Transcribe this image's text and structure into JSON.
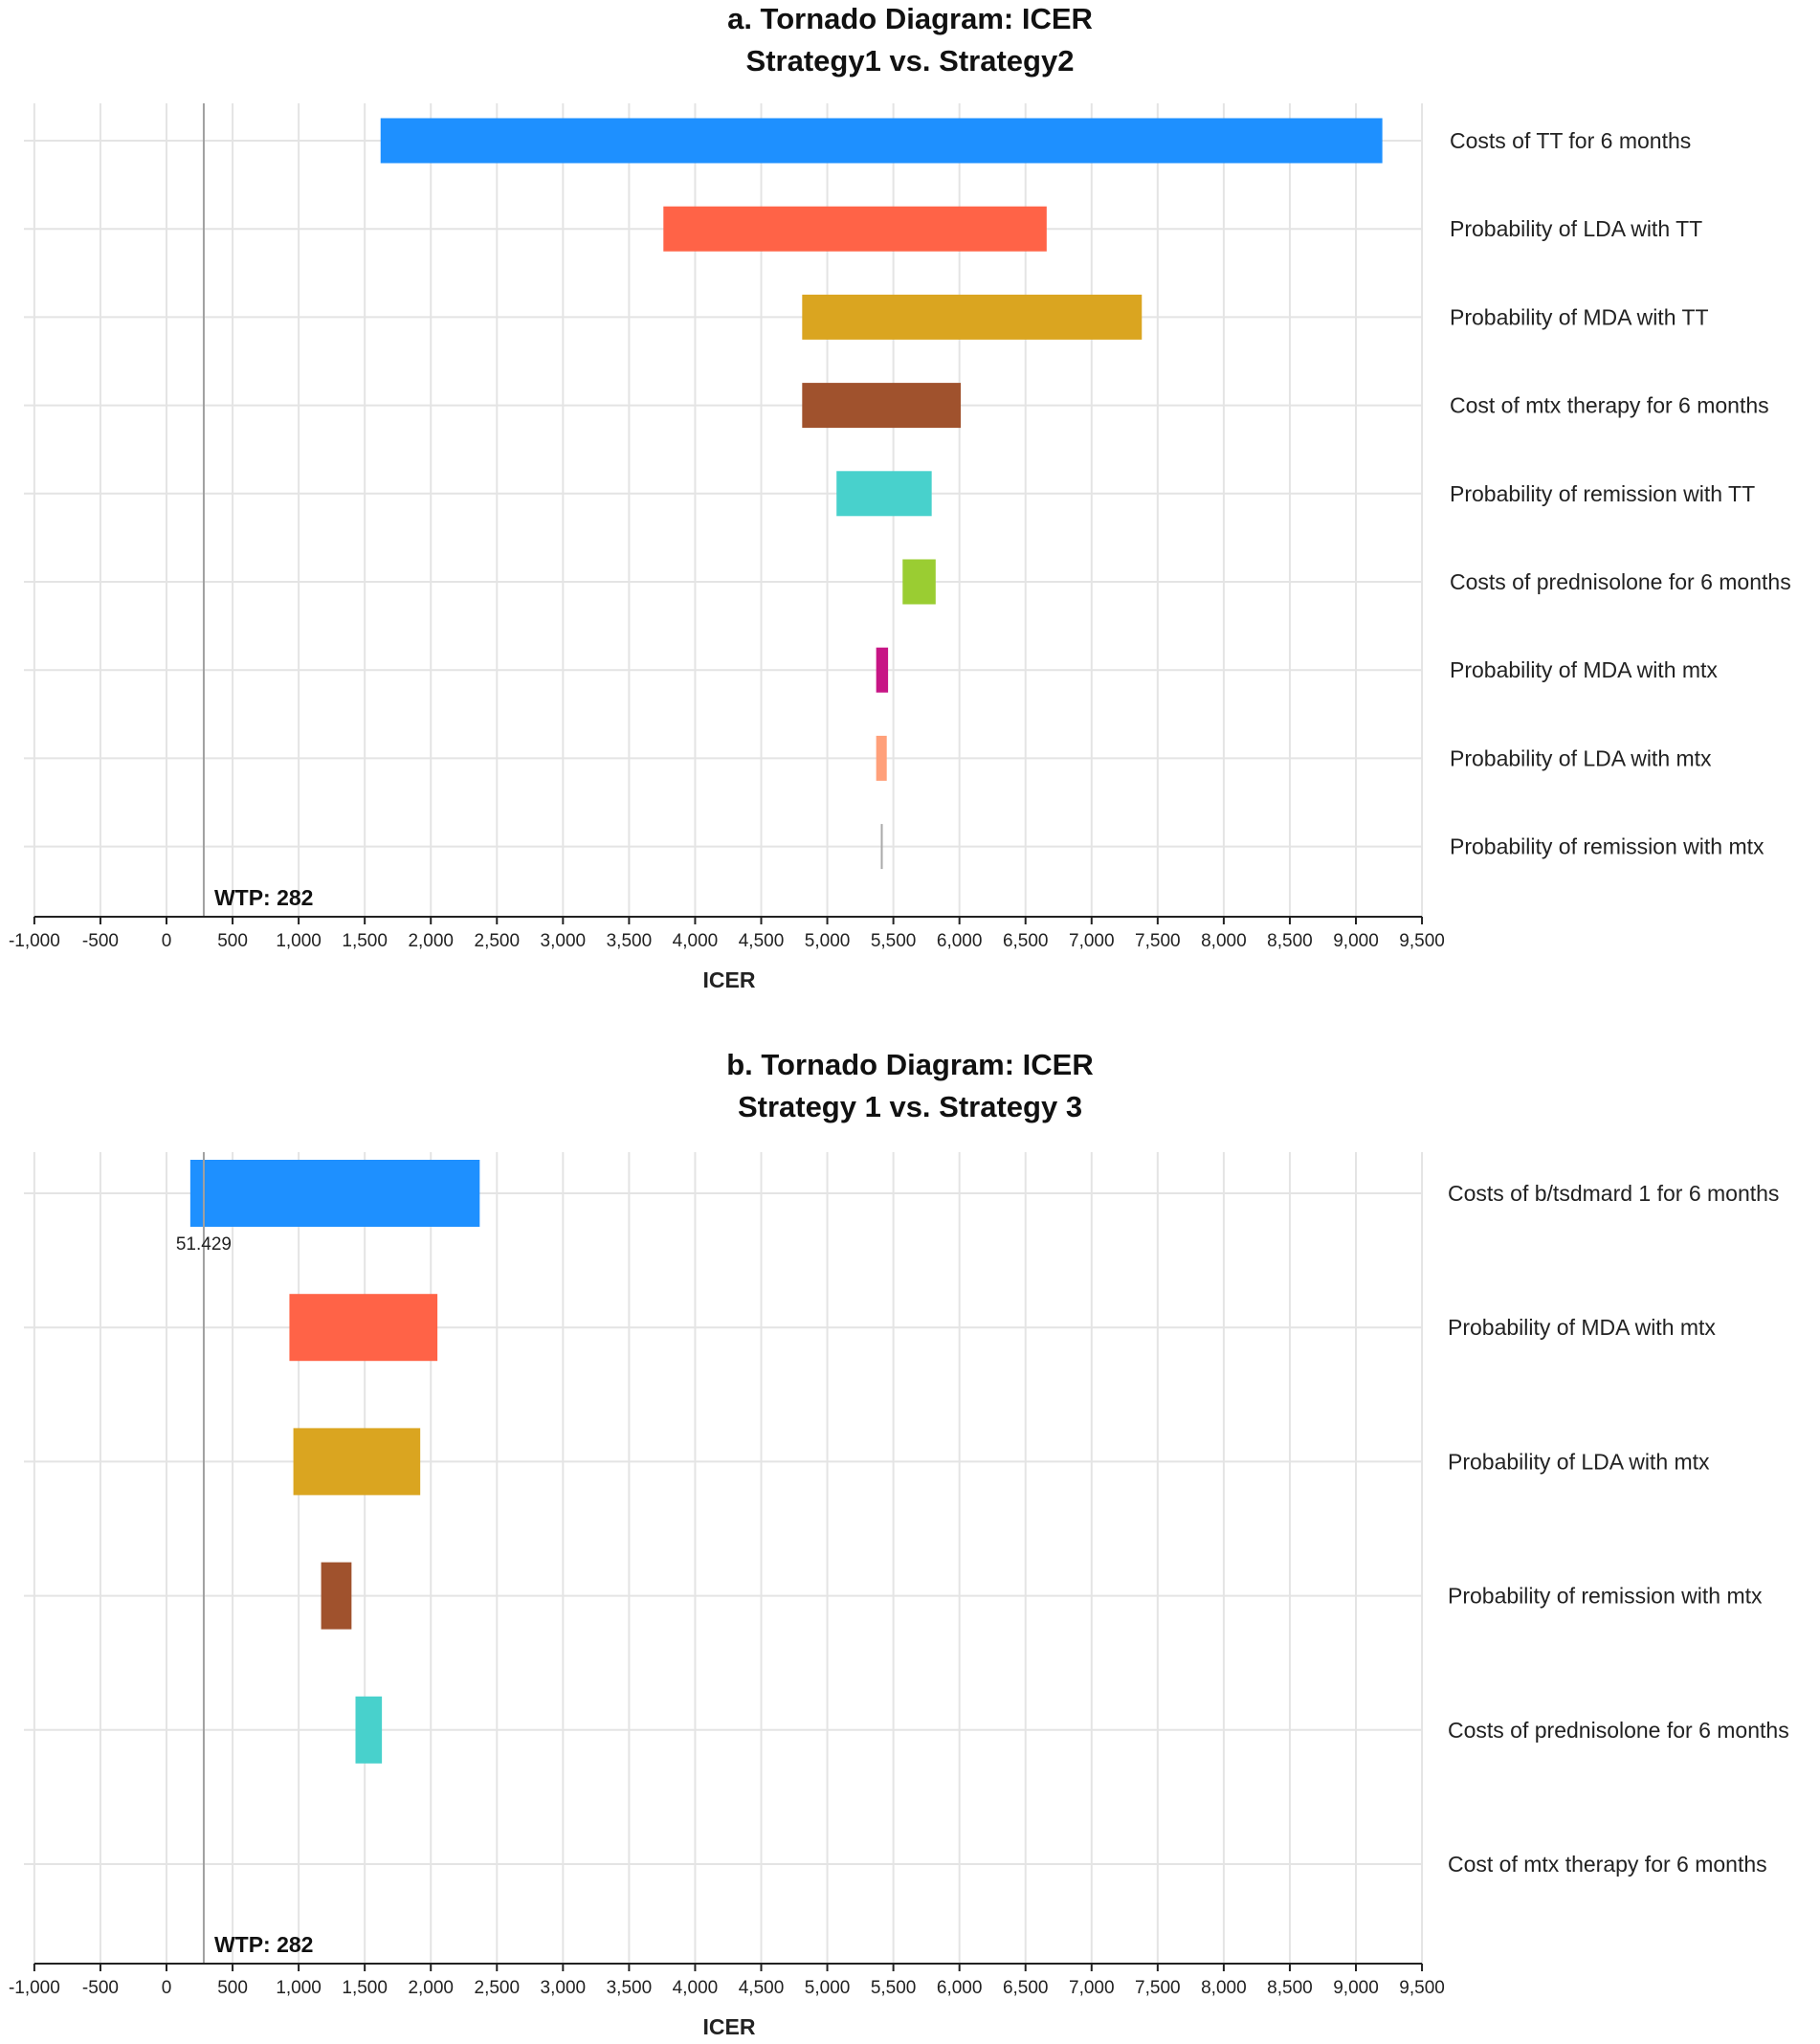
{
  "chart_data": [
    {
      "type": "bar",
      "subtype": "tornado",
      "title": [
        "a. Tornado Diagram: ICER",
        "Strategy1 vs. Strategy2"
      ],
      "xlabel": "ICER",
      "ylabel": "",
      "xlim": [
        -1000,
        9500
      ],
      "xticks": [
        -1000,
        -500,
        0,
        500,
        1000,
        1500,
        2000,
        2500,
        3000,
        3500,
        4000,
        4500,
        5000,
        5500,
        6000,
        6500,
        7000,
        7500,
        8000,
        8500,
        9000,
        9500
      ],
      "xtick_labels": [
        "-1,000",
        "-500",
        "0",
        "500",
        "1,000",
        "1,500",
        "2,000",
        "2,500",
        "3,000",
        "3,500",
        "4,000",
        "4,500",
        "5,000",
        "5,500",
        "6,000",
        "6,500",
        "7,000",
        "7,500",
        "8,000",
        "8,500",
        "9,000",
        "9,500"
      ],
      "reference_line": {
        "value": 282,
        "label": "WTP: 282"
      },
      "grid": true,
      "bars": [
        {
          "label": "Costs of TT for 6 months",
          "low": 1620,
          "high": 9200,
          "color": "#1e90ff"
        },
        {
          "label": "Probability of LDA with TT",
          "low": 3760,
          "high": 6660,
          "color": "#ff6347"
        },
        {
          "label": "Probability of MDA with TT",
          "low": 4810,
          "high": 7380,
          "color": "#daa520"
        },
        {
          "label": "Cost of mtx therapy for 6 months",
          "low": 4810,
          "high": 6010,
          "color": "#a0522d"
        },
        {
          "label": "Probability of remission with TT",
          "low": 5070,
          "high": 5790,
          "color": "#48d1cc"
        },
        {
          "label": "Costs of prednisolone for 6 months",
          "low": 5570,
          "high": 5820,
          "color": "#9acd32"
        },
        {
          "label": "Probability of MDA with mtx",
          "low": 5370,
          "high": 5460,
          "color": "#c71585"
        },
        {
          "label": "Probability of LDA with mtx",
          "low": 5370,
          "high": 5450,
          "color": "#ffa07a"
        },
        {
          "label": "Probability of remission with mtx",
          "low": 5405,
          "high": 5415,
          "color": "#a9a9a9"
        }
      ],
      "annotations": []
    },
    {
      "type": "bar",
      "subtype": "tornado",
      "title": [
        "b. Tornado Diagram: ICER",
        "Strategy 1 vs. Strategy 3"
      ],
      "xlabel": "ICER",
      "ylabel": "",
      "xlim": [
        -1000,
        9500
      ],
      "xticks": [
        -1000,
        -500,
        0,
        500,
        1000,
        1500,
        2000,
        2500,
        3000,
        3500,
        4000,
        4500,
        5000,
        5500,
        6000,
        6500,
        7000,
        7500,
        8000,
        8500,
        9000,
        9500
      ],
      "xtick_labels": [
        "-1,000",
        "-500",
        "0",
        "500",
        "1,000",
        "1,500",
        "2,000",
        "2,500",
        "3,000",
        "3,500",
        "4,000",
        "4,500",
        "5,000",
        "5,500",
        "6,000",
        "6,500",
        "7,000",
        "7,500",
        "8,000",
        "8,500",
        "9,000",
        "9,500"
      ],
      "reference_line": {
        "value": 282,
        "label": "WTP: 282"
      },
      "grid": true,
      "bars": [
        {
          "label": "Costs of b/tsdmard 1 for 6 months",
          "low": 180,
          "high": 2370,
          "color": "#1e90ff"
        },
        {
          "label": "Probability of MDA with mtx",
          "low": 930,
          "high": 2050,
          "color": "#ff6347"
        },
        {
          "label": "Probability of LDA with mtx",
          "low": 960,
          "high": 1920,
          "color": "#daa520"
        },
        {
          "label": "Probability of remission with mtx",
          "low": 1170,
          "high": 1400,
          "color": "#a0522d"
        },
        {
          "label": "Costs of prednisolone for 6 months",
          "low": 1430,
          "high": 1630,
          "color": "#48d1cc"
        },
        {
          "label": "Cost of mtx therapy for 6 months",
          "low": null,
          "high": null,
          "color": "#9acd32"
        }
      ],
      "annotations": [
        {
          "text": "51.429",
          "bar_index": 0
        }
      ]
    }
  ]
}
